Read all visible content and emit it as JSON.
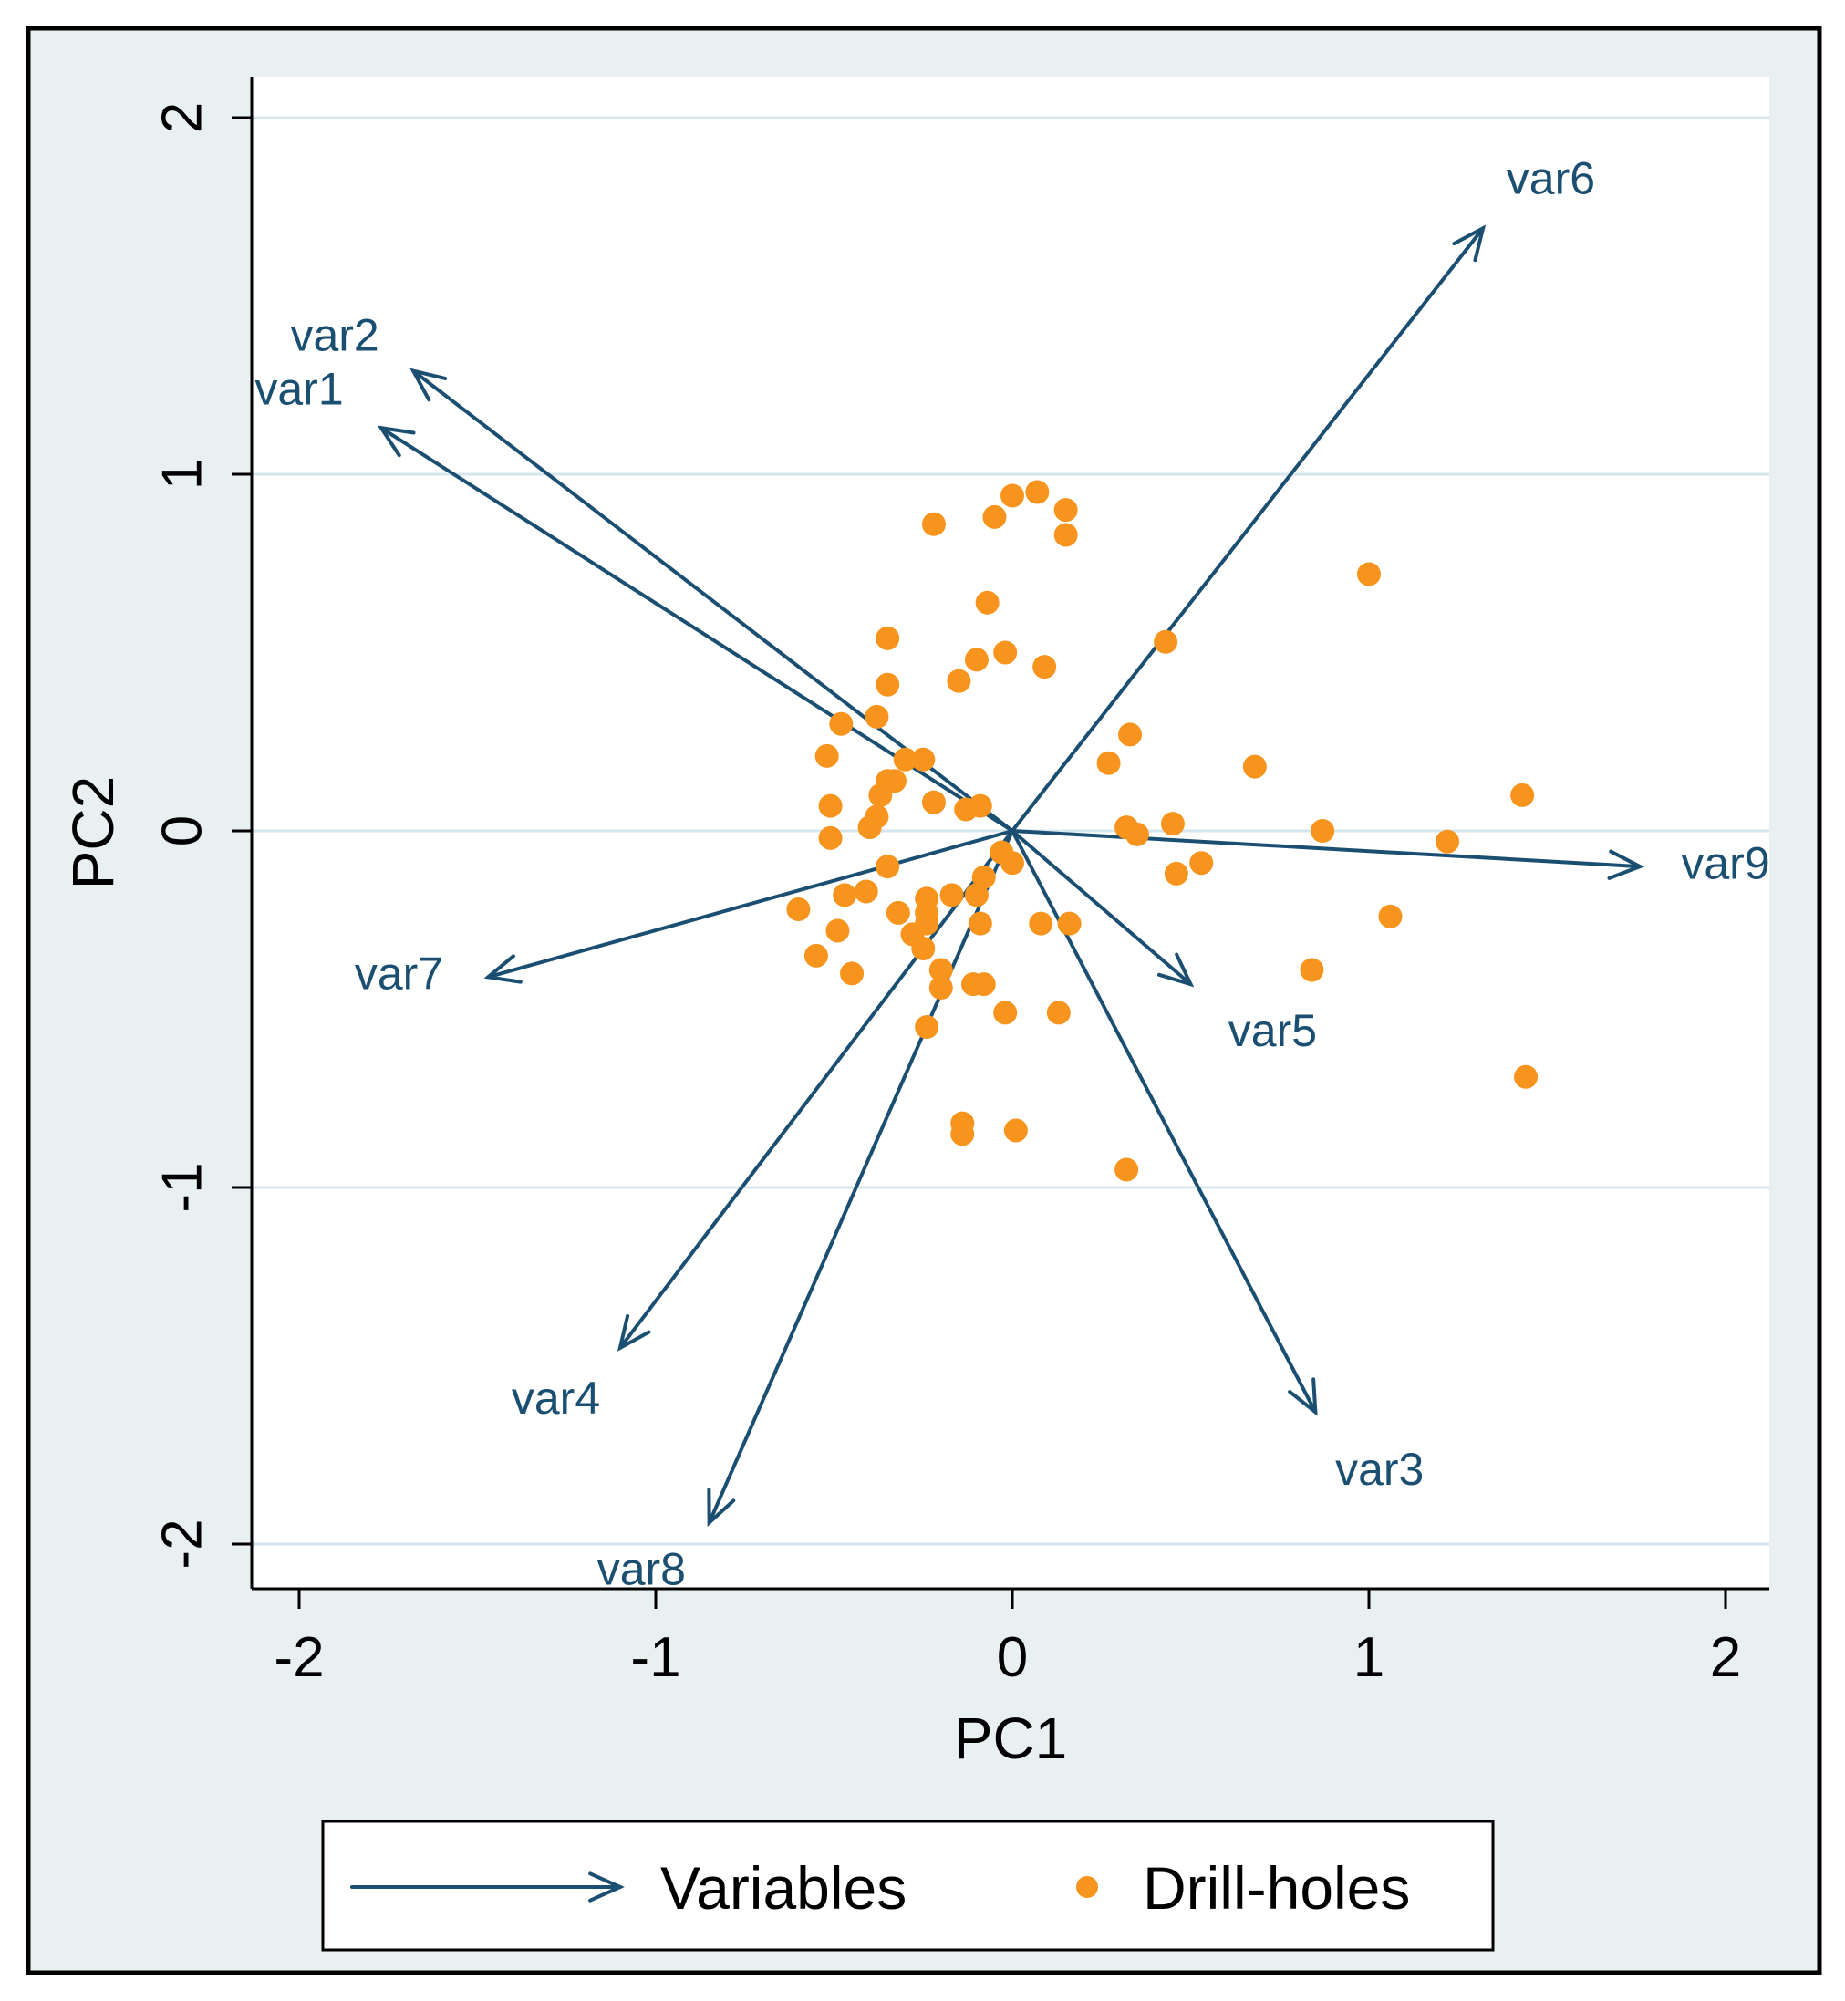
{
  "chart_data": {
    "type": "scatter",
    "subtype": "biplot",
    "title": "",
    "xlabel": "PC1",
    "ylabel": "PC2",
    "xlim": [
      -2.12,
      2.12
    ],
    "ylim": [
      -2.12,
      2.12
    ],
    "xticks": [
      -2,
      -1,
      0,
      1,
      2
    ],
    "yticks": [
      -2,
      -1,
      0,
      1,
      2
    ],
    "xtick_labels": [
      "-2",
      "-1",
      "0",
      "1",
      "2"
    ],
    "ytick_labels": [
      "-2",
      "-1",
      "0",
      "1",
      "2"
    ],
    "grid": "horizontal",
    "colors": {
      "plot_region": "#ffffff",
      "outer_background": "#e8f0f1",
      "frame": "#000000",
      "gridline": "#d6e6ee",
      "vectors": "#1b4f72",
      "points": "#f7941d",
      "axis_text": "#000000"
    },
    "vectors": [
      {
        "name": "var1",
        "x": -1.77,
        "y": 1.13,
        "label_x": -2.0,
        "label_y": 1.23
      },
      {
        "name": "var2",
        "x": -1.68,
        "y": 1.29,
        "label_x": -1.9,
        "label_y": 1.38
      },
      {
        "name": "var3",
        "x": 0.85,
        "y": -1.63,
        "label_x": 1.03,
        "label_y": -1.8
      },
      {
        "name": "var4",
        "x": -1.1,
        "y": -1.45,
        "label_x": -1.28,
        "label_y": -1.6
      },
      {
        "name": "var5",
        "x": 0.5,
        "y": -0.43,
        "label_x": 0.73,
        "label_y": -0.57
      },
      {
        "name": "var6",
        "x": 1.32,
        "y": 1.69,
        "label_x": 1.51,
        "label_y": 1.82
      },
      {
        "name": "var7",
        "x": -1.47,
        "y": -0.41,
        "label_x": -1.72,
        "label_y": -0.41
      },
      {
        "name": "var8",
        "x": -0.85,
        "y": -1.94,
        "label_x": -1.04,
        "label_y": -2.08
      },
      {
        "name": "var9",
        "x": 1.76,
        "y": -0.1,
        "label_x": 2.0,
        "label_y": -0.1
      }
    ],
    "series": [
      {
        "name": "Drill-holes",
        "points": [
          [
            0.07,
            0.95
          ],
          [
            0.0,
            0.94
          ],
          [
            0.15,
            0.9
          ],
          [
            -0.05,
            0.88
          ],
          [
            -0.22,
            0.86
          ],
          [
            0.15,
            0.83
          ],
          [
            1.0,
            0.72
          ],
          [
            -0.07,
            0.64
          ],
          [
            0.43,
            0.53
          ],
          [
            -0.35,
            0.54
          ],
          [
            -0.02,
            0.5
          ],
          [
            -0.1,
            0.48
          ],
          [
            0.09,
            0.46
          ],
          [
            -0.35,
            0.41
          ],
          [
            -0.15,
            0.42
          ],
          [
            -0.38,
            0.32
          ],
          [
            -0.48,
            0.3
          ],
          [
            0.33,
            0.27
          ],
          [
            -0.52,
            0.21
          ],
          [
            -0.3,
            0.2
          ],
          [
            -0.25,
            0.2
          ],
          [
            0.27,
            0.19
          ],
          [
            0.68,
            0.18
          ],
          [
            -0.35,
            0.14
          ],
          [
            -0.33,
            0.14
          ],
          [
            -0.37,
            0.1
          ],
          [
            -0.38,
            0.04
          ],
          [
            -0.22,
            0.08
          ],
          [
            -0.51,
            0.07
          ],
          [
            -0.4,
            0.01
          ],
          [
            -0.13,
            0.06
          ],
          [
            -0.09,
            0.07
          ],
          [
            1.43,
            0.1
          ],
          [
            0.32,
            0.01
          ],
          [
            0.35,
            -0.01
          ],
          [
            0.45,
            0.02
          ],
          [
            0.87,
            0.0
          ],
          [
            -0.51,
            -0.02
          ],
          [
            1.22,
            -0.03
          ],
          [
            -0.03,
            -0.06
          ],
          [
            0.0,
            -0.09
          ],
          [
            -0.35,
            -0.1
          ],
          [
            0.53,
            -0.09
          ],
          [
            0.46,
            -0.12
          ],
          [
            -0.08,
            -0.13
          ],
          [
            -0.41,
            -0.17
          ],
          [
            -0.47,
            -0.18
          ],
          [
            -0.1,
            -0.18
          ],
          [
            -0.17,
            -0.18
          ],
          [
            -0.24,
            -0.19
          ],
          [
            -0.6,
            -0.22
          ],
          [
            -0.32,
            -0.23
          ],
          [
            -0.24,
            -0.23
          ],
          [
            1.06,
            -0.24
          ],
          [
            -0.24,
            -0.26
          ],
          [
            0.08,
            -0.26
          ],
          [
            0.16,
            -0.26
          ],
          [
            -0.09,
            -0.26
          ],
          [
            -0.49,
            -0.28
          ],
          [
            -0.28,
            -0.29
          ],
          [
            -0.25,
            -0.33
          ],
          [
            -0.55,
            -0.35
          ],
          [
            -0.2,
            -0.39
          ],
          [
            -0.45,
            -0.4
          ],
          [
            0.84,
            -0.39
          ],
          [
            -0.2,
            -0.44
          ],
          [
            -0.11,
            -0.43
          ],
          [
            -0.08,
            -0.43
          ],
          [
            -0.02,
            -0.51
          ],
          [
            0.13,
            -0.51
          ],
          [
            -0.24,
            -0.55
          ],
          [
            1.44,
            -0.69
          ],
          [
            -0.14,
            -0.82
          ],
          [
            -0.14,
            -0.85
          ],
          [
            0.01,
            -0.84
          ],
          [
            0.32,
            -0.95
          ]
        ]
      }
    ],
    "legend": {
      "position": "bottom",
      "items": [
        {
          "label": "Variables",
          "symbol": "arrow"
        },
        {
          "label": "Drill-holes",
          "symbol": "dot"
        }
      ]
    }
  }
}
